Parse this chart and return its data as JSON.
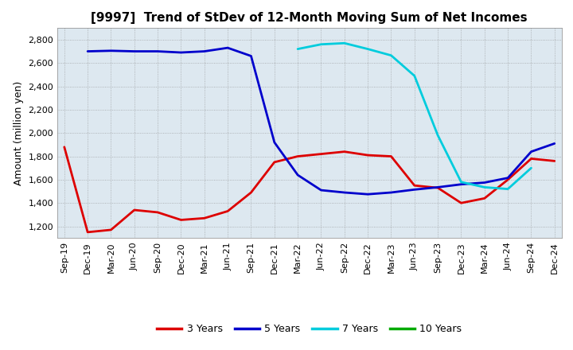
{
  "title": "[9997]  Trend of StDev of 12-Month Moving Sum of Net Incomes",
  "ylabel": "Amount (million yen)",
  "background_color": "#ffffff",
  "plot_bg_color": "#dde8f0",
  "grid_color": "#888888",
  "ylim": [
    1100,
    2900
  ],
  "yticks": [
    1200,
    1400,
    1600,
    1800,
    2000,
    2200,
    2400,
    2600,
    2800
  ],
  "x_labels": [
    "Sep-19",
    "Dec-19",
    "Mar-20",
    "Jun-20",
    "Sep-20",
    "Dec-20",
    "Mar-21",
    "Jun-21",
    "Sep-21",
    "Dec-21",
    "Mar-22",
    "Jun-22",
    "Sep-22",
    "Dec-22",
    "Mar-23",
    "Jun-23",
    "Sep-23",
    "Dec-23",
    "Mar-24",
    "Jun-24",
    "Sep-24",
    "Dec-24"
  ],
  "series": {
    "3 Years": {
      "color": "#dd0000",
      "linewidth": 2.0,
      "values": [
        1880,
        1150,
        1170,
        1340,
        1320,
        1255,
        1270,
        1330,
        1490,
        1750,
        1800,
        1820,
        1840,
        1810,
        1800,
        1550,
        1530,
        1400,
        1440,
        1600,
        1780,
        1760
      ]
    },
    "5 Years": {
      "color": "#0000cc",
      "linewidth": 2.0,
      "values": [
        null,
        2700,
        2705,
        2700,
        2700,
        2690,
        2700,
        2730,
        2660,
        1920,
        1640,
        1510,
        1490,
        1475,
        1490,
        1515,
        1535,
        1560,
        1575,
        1615,
        1840,
        1910
      ]
    },
    "7 Years": {
      "color": "#00ccdd",
      "linewidth": 2.0,
      "values": [
        null,
        null,
        null,
        null,
        null,
        null,
        null,
        null,
        null,
        null,
        2720,
        2760,
        2770,
        2720,
        2665,
        2490,
        1980,
        1580,
        1535,
        1520,
        1700,
        null
      ]
    },
    "10 Years": {
      "color": "#00aa00",
      "linewidth": 2.0,
      "values": [
        null,
        null,
        null,
        null,
        null,
        null,
        null,
        null,
        null,
        null,
        null,
        null,
        null,
        null,
        null,
        null,
        null,
        null,
        null,
        null,
        null,
        null
      ]
    }
  },
  "legend_names": [
    "3 Years",
    "5 Years",
    "7 Years",
    "10 Years"
  ],
  "title_fontsize": 11,
  "ylabel_fontsize": 9,
  "tick_fontsize": 8,
  "legend_fontsize": 9
}
